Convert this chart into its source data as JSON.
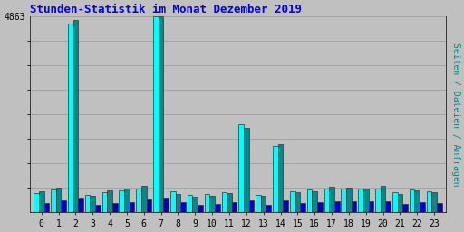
{
  "title": "Stunden-Statistik im Monat Dezember 2019",
  "title_color": "#0000EE",
  "title_fontsize": 9,
  "background_color": "#C0C0C0",
  "plot_bg_color": "#C0C0C0",
  "ymax": 4863,
  "ytick_label": "4863",
  "hours": [
    0,
    1,
    2,
    3,
    4,
    5,
    6,
    7,
    8,
    9,
    10,
    11,
    12,
    13,
    14,
    15,
    16,
    17,
    18,
    19,
    20,
    21,
    22,
    23
  ],
  "seiten": [
    480,
    560,
    4700,
    440,
    500,
    540,
    600,
    4863,
    530,
    440,
    460,
    510,
    2190,
    440,
    1650,
    530,
    560,
    600,
    580,
    580,
    590,
    490,
    570,
    520
  ],
  "dateien": [
    520,
    620,
    4780,
    400,
    540,
    580,
    660,
    4863,
    460,
    390,
    420,
    470,
    2100,
    420,
    1700,
    490,
    530,
    640,
    610,
    600,
    650,
    450,
    540,
    490
  ],
  "anfragen": [
    240,
    300,
    340,
    180,
    220,
    260,
    310,
    340,
    260,
    190,
    210,
    260,
    300,
    190,
    300,
    230,
    260,
    280,
    270,
    270,
    270,
    210,
    260,
    240
  ],
  "color_seiten": "#00FFFF",
  "color_dateien": "#008B8B",
  "color_anfragen": "#0000CC",
  "bar_width": 0.3,
  "ylabel_right": "Seiten / Dateien / Anfragen",
  "ylabel_right_color": "#008B8B",
  "num_gridlines": 8
}
